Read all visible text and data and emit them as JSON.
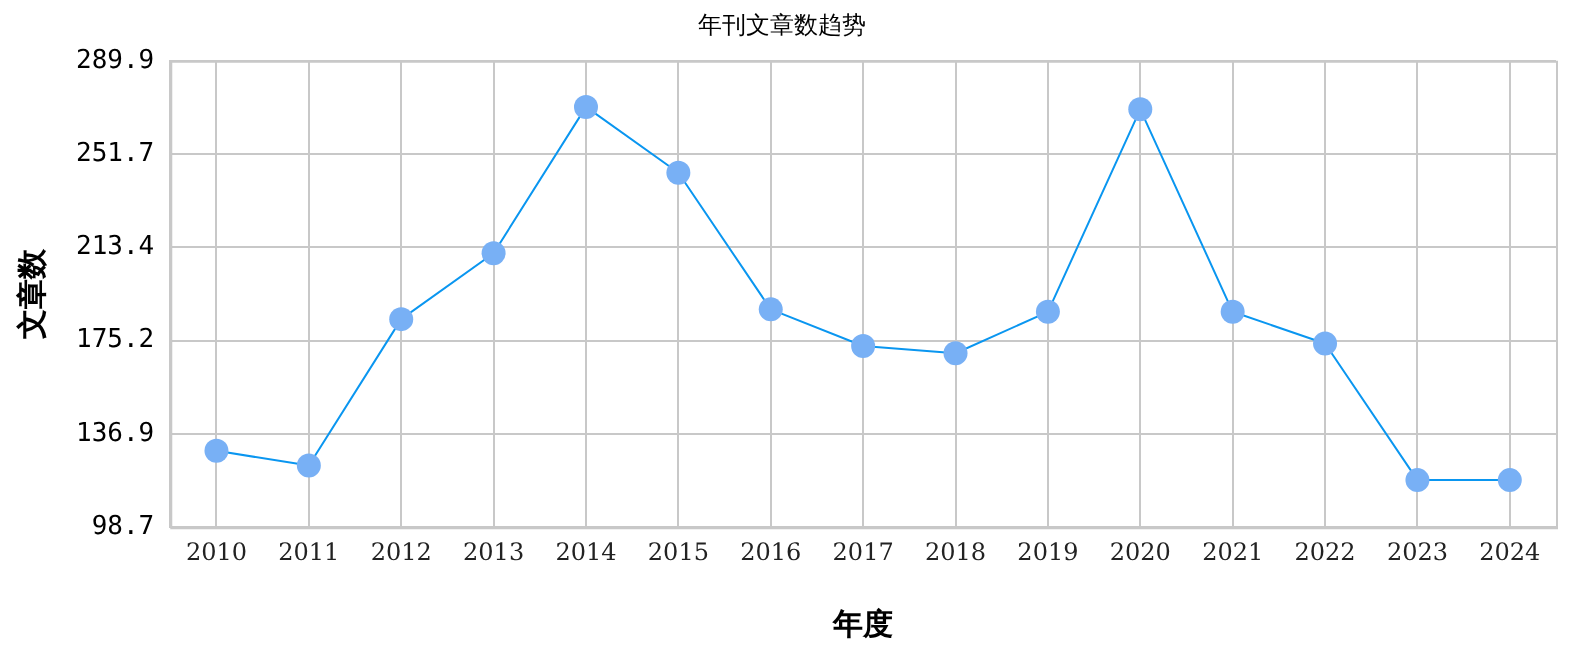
{
  "chart_data": {
    "type": "line",
    "title": "年刊文章数趋势",
    "xlabel": "年度",
    "ylabel": "文章数",
    "categories": [
      "2010",
      "2011",
      "2012",
      "2013",
      "2014",
      "2015",
      "2016",
      "2017",
      "2018",
      "2019",
      "2020",
      "2021",
      "2022",
      "2023",
      "2024"
    ],
    "series": [
      {
        "color": "#0a96f0",
        "values": [
          130,
          124,
          184,
          211,
          271,
          244,
          188,
          173,
          170,
          187,
          270,
          187,
          174,
          118,
          118
        ]
      }
    ],
    "ylim": [
      98.7,
      289.9
    ],
    "yticks": [
      98.7,
      136.9,
      175.2,
      213.4,
      251.7,
      289.9
    ],
    "grid": true,
    "legend": false,
    "marker": "circle",
    "line_style": "solid"
  }
}
